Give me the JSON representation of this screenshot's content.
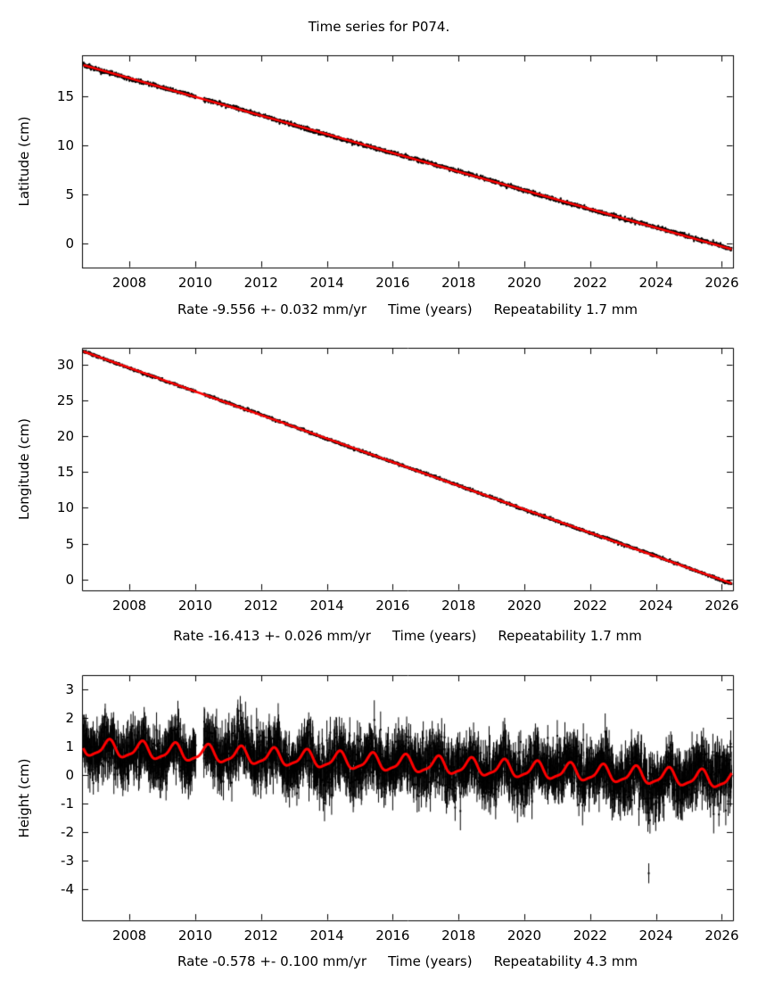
{
  "title": "Time series for P074.",
  "colors": {
    "points": "#000000",
    "trend": "#ff0000",
    "background": "#ffffff"
  },
  "chart_data": [
    {
      "type": "scatter",
      "series_name": "latitude",
      "ylabel": "Latitude (cm)",
      "xlabel": "Time (years)",
      "caption_rate": "Rate -9.556 +- 0.032 mm/yr",
      "caption_repeatability": "Repeatability 1.7 mm",
      "xlim": [
        2006.56,
        2026.34
      ],
      "ylim": [
        -2.5,
        19.2
      ],
      "xticks": [
        2008,
        2010,
        2012,
        2014,
        2016,
        2018,
        2020,
        2022,
        2024,
        2026
      ],
      "yticks": [
        0,
        5,
        10,
        15
      ],
      "trend": {
        "x_start": 2006.6,
        "x_end": 2026.3,
        "y_start": 18.2,
        "rate_cm_per_yr": -0.9556
      },
      "seasonal": {
        "annual_amp": 0,
        "annual_phase": 0,
        "semiannual_amp": 0,
        "semiannual_phase": 0
      },
      "scatter": {
        "step": 0.008,
        "sigma": 0.09,
        "error_bar": 0.12,
        "wander_amp": 0.05,
        "wander_period": 7,
        "gaps": [
          [
            2010.02,
            2010.25
          ]
        ],
        "seed": 11
      }
    },
    {
      "type": "scatter",
      "series_name": "longitude",
      "ylabel": "Longitude (cm)",
      "xlabel": "Time (years)",
      "caption_rate": "Rate -16.413 +- 0.026 mm/yr",
      "caption_repeatability": "Repeatability 1.7 mm",
      "xlim": [
        2006.56,
        2026.34
      ],
      "ylim": [
        -1.5,
        32.3
      ],
      "xticks": [
        2008,
        2010,
        2012,
        2014,
        2016,
        2018,
        2020,
        2022,
        2024,
        2026
      ],
      "yticks": [
        0,
        5,
        10,
        15,
        20,
        25,
        30
      ],
      "trend": {
        "x_start": 2006.6,
        "x_end": 2026.3,
        "y_start": 31.8,
        "rate_cm_per_yr": -1.6413
      },
      "seasonal": {
        "annual_amp": 0,
        "annual_phase": 0,
        "semiannual_amp": 0,
        "semiannual_phase": 0
      },
      "scatter": {
        "step": 0.008,
        "sigma": 0.09,
        "error_bar": 0.12,
        "wander_amp": 0.05,
        "wander_period": 6,
        "gaps": [
          [
            2010.02,
            2010.25
          ]
        ],
        "seed": 22
      }
    },
    {
      "type": "scatter",
      "series_name": "height",
      "ylabel": "Height (cm)",
      "xlabel": "Time (years)",
      "caption_rate": "Rate -0.578 +- 0.100 mm/yr",
      "caption_repeatability": "Repeatability 4.3 mm",
      "xlim": [
        2006.56,
        2026.34
      ],
      "ylim": [
        -5.1,
        3.5
      ],
      "xticks": [
        2008,
        2010,
        2012,
        2014,
        2016,
        2018,
        2020,
        2022,
        2024,
        2026
      ],
      "yticks": [
        -4,
        -3,
        -2,
        -1,
        0,
        1,
        2,
        3
      ],
      "trend": {
        "x_start": 2006.6,
        "x_end": 2026.3,
        "y_start": 0.95,
        "rate_cm_per_yr": -0.0578
      },
      "seasonal": {
        "annual_amp": 0.28,
        "annual_phase": 0.12,
        "semiannual_amp": 0.08,
        "semiannual_phase": 0.3
      },
      "scatter": {
        "step": 0.008,
        "sigma": 0.42,
        "error_bar": 0.55,
        "wander_amp": 0.12,
        "wander_period": 5,
        "gaps": [
          [
            2010.02,
            2010.25
          ]
        ],
        "seed": 33
      },
      "outliers": [
        {
          "x": 2023.78,
          "y": -3.45,
          "error": 0.35
        }
      ]
    }
  ]
}
